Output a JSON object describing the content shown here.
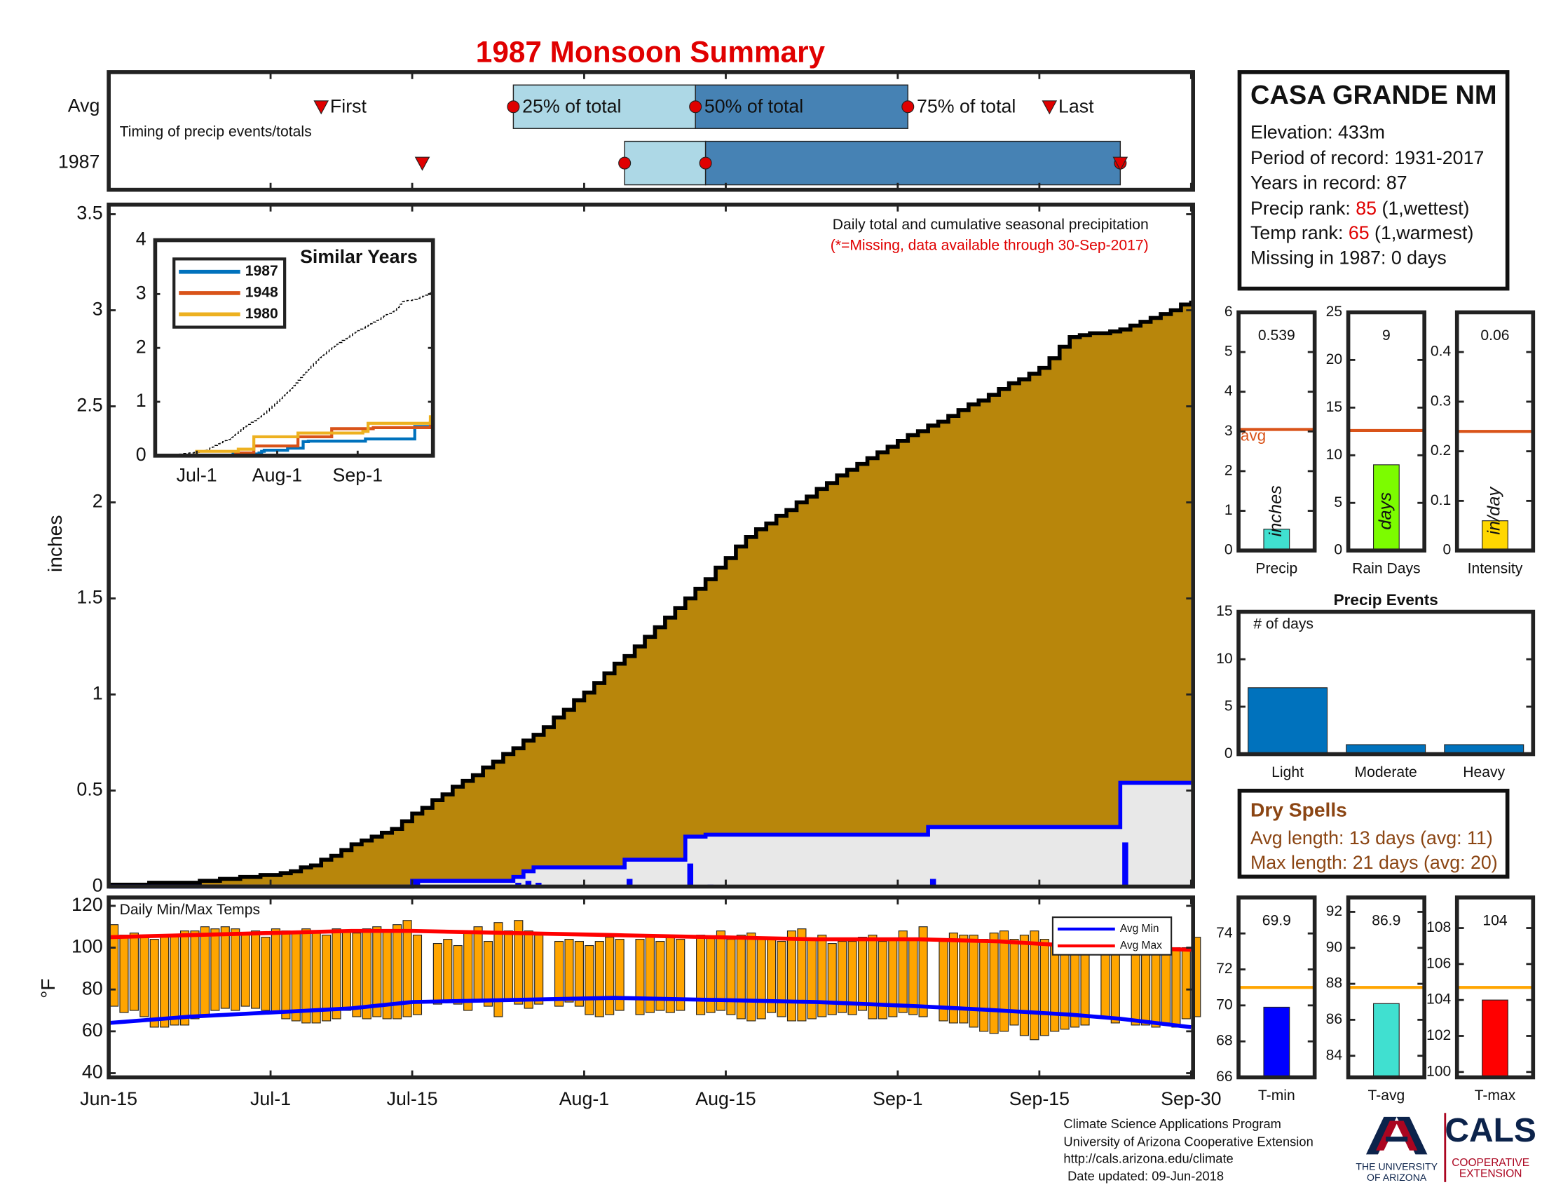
{
  "chart_data": [
    {
      "type": "timing",
      "title": "1987 Monsoon Summary",
      "note": "Timing of precip events/totals",
      "xlim": [
        0,
        107
      ],
      "event_labels": [
        "First",
        "25% of total",
        "50% of total",
        "75% of total",
        "Last"
      ],
      "rows": [
        {
          "name": "Avg",
          "values": [
            21,
            40,
            58,
            79,
            93
          ]
        },
        {
          "name": "1987",
          "values": [
            31,
            51,
            59,
            100,
            100
          ]
        }
      ],
      "colors": [
        "#add8e6",
        "#4682b4"
      ],
      "marker_color": "#e00000"
    },
    {
      "type": "area_step",
      "ylabel": "inches",
      "xlim": [
        0,
        107
      ],
      "ylim": [
        0,
        3.55
      ],
      "yticks": [
        0,
        0.5,
        1,
        1.5,
        2,
        2.5,
        3,
        3.5
      ],
      "annotations": [
        "Daily total and cumulative seasonal precipitation",
        "(*=Missing, data available through 30-Sep-2017)"
      ],
      "x": [
        0,
        1,
        2,
        3,
        4,
        5,
        6,
        7,
        8,
        9,
        10,
        11,
        12,
        13,
        14,
        15,
        16,
        17,
        18,
        19,
        20,
        21,
        22,
        23,
        24,
        25,
        26,
        27,
        28,
        29,
        30,
        31,
        32,
        33,
        34,
        35,
        36,
        37,
        38,
        39,
        40,
        41,
        42,
        43,
        44,
        45,
        46,
        47,
        48,
        49,
        50,
        51,
        52,
        53,
        54,
        55,
        56,
        57,
        58,
        59,
        60,
        61,
        62,
        63,
        64,
        65,
        66,
        67,
        68,
        69,
        70,
        71,
        72,
        73,
        74,
        75,
        76,
        77,
        78,
        79,
        80,
        81,
        82,
        83,
        84,
        85,
        86,
        87,
        88,
        89,
        90,
        91,
        92,
        93,
        94,
        95,
        96,
        97,
        98,
        99,
        100,
        101,
        102,
        103,
        104,
        105,
        106,
        107
      ],
      "average": {
        "color": "#B8860B",
        "values": [
          0.01,
          0.01,
          0.01,
          0.01,
          0.02,
          0.02,
          0.02,
          0.02,
          0.02,
          0.03,
          0.03,
          0.04,
          0.04,
          0.05,
          0.05,
          0.06,
          0.06,
          0.07,
          0.08,
          0.1,
          0.11,
          0.14,
          0.16,
          0.19,
          0.22,
          0.24,
          0.26,
          0.28,
          0.3,
          0.34,
          0.38,
          0.41,
          0.45,
          0.48,
          0.52,
          0.55,
          0.58,
          0.62,
          0.65,
          0.69,
          0.72,
          0.76,
          0.79,
          0.83,
          0.88,
          0.92,
          0.97,
          1.01,
          1.06,
          1.11,
          1.16,
          1.2,
          1.25,
          1.3,
          1.35,
          1.4,
          1.45,
          1.5,
          1.55,
          1.6,
          1.66,
          1.71,
          1.77,
          1.82,
          1.86,
          1.89,
          1.93,
          1.96,
          2.0,
          2.03,
          2.07,
          2.1,
          2.14,
          2.17,
          2.2,
          2.23,
          2.26,
          2.29,
          2.32,
          2.35,
          2.37,
          2.4,
          2.42,
          2.45,
          2.48,
          2.51,
          2.53,
          2.56,
          2.59,
          2.62,
          2.64,
          2.67,
          2.7,
          2.75,
          2.81,
          2.86,
          2.87,
          2.88,
          2.88,
          2.89,
          2.9,
          2.92,
          2.94,
          2.96,
          2.98,
          3.0,
          3.03,
          3.05
        ]
      },
      "cumulative": {
        "color": "#0000ff",
        "fill": "#e8e8e8",
        "values": [
          0,
          0,
          0,
          0,
          0,
          0,
          0,
          0,
          0,
          0,
          0,
          0,
          0,
          0,
          0,
          0,
          0,
          0,
          0,
          0,
          0,
          0,
          0,
          0,
          0,
          0,
          0,
          0,
          0,
          0,
          0.03,
          0.03,
          0.03,
          0.03,
          0.03,
          0.03,
          0.03,
          0.03,
          0.03,
          0.03,
          0.05,
          0.08,
          0.1,
          0.1,
          0.1,
          0.1,
          0.1,
          0.1,
          0.1,
          0.1,
          0.1,
          0.14,
          0.14,
          0.14,
          0.14,
          0.14,
          0.14,
          0.26,
          0.26,
          0.27,
          0.27,
          0.27,
          0.27,
          0.27,
          0.27,
          0.27,
          0.27,
          0.27,
          0.27,
          0.27,
          0.27,
          0.27,
          0.27,
          0.27,
          0.27,
          0.27,
          0.27,
          0.27,
          0.27,
          0.27,
          0.27,
          0.31,
          0.31,
          0.31,
          0.31,
          0.31,
          0.31,
          0.31,
          0.31,
          0.31,
          0.31,
          0.31,
          0.31,
          0.31,
          0.31,
          0.31,
          0.31,
          0.31,
          0.31,
          0.31,
          0.54,
          0.54,
          0.54,
          0.54,
          0.54,
          0.54,
          0.54,
          0.54
        ]
      },
      "daily": {
        "color": "#0000ff",
        "values": [
          0,
          0,
          0,
          0,
          0,
          0,
          0,
          0,
          0,
          0,
          0,
          0,
          0,
          0,
          0,
          0,
          0,
          0,
          0,
          0,
          0,
          0,
          0,
          0,
          0,
          0,
          0,
          0,
          0,
          0,
          0.03,
          0,
          0,
          0,
          0,
          0,
          0,
          0,
          0,
          0,
          0.02,
          0.03,
          0.02,
          0,
          0,
          0,
          0,
          0,
          0,
          0,
          0,
          0.04,
          0,
          0,
          0,
          0,
          0,
          0.12,
          0,
          0.01,
          0,
          0,
          0,
          0,
          0,
          0,
          0,
          0,
          0,
          0,
          0,
          0,
          0,
          0,
          0,
          0,
          0,
          0,
          0,
          0,
          0,
          0.04,
          0,
          0,
          0,
          0,
          0,
          0,
          0,
          0,
          0,
          0,
          0,
          0,
          0,
          0,
          0,
          0,
          0,
          0,
          0.23,
          0,
          0,
          0,
          0,
          0,
          0,
          0
        ]
      }
    },
    {
      "type": "line_step",
      "title": "Similar Years",
      "xlim": [
        0,
        107
      ],
      "ylim": [
        0,
        4
      ],
      "yticks": [
        0,
        1,
        2,
        3,
        4
      ],
      "xticks": [
        {
          "value": 16,
          "label": "Jul-1"
        },
        {
          "value": 47,
          "label": "Aug-1"
        },
        {
          "value": 78,
          "label": "Sep-1"
        }
      ],
      "series": [
        {
          "name": "1987",
          "color": "#0072BD",
          "x": [
            0,
            30,
            40,
            41,
            42,
            51,
            57,
            59,
            81,
            100,
            107
          ],
          "values": [
            0,
            0.03,
            0.05,
            0.08,
            0.1,
            0.14,
            0.26,
            0.27,
            0.31,
            0.54,
            0.54
          ]
        },
        {
          "name": "1948",
          "color": "#D95319",
          "x": [
            0,
            31,
            38,
            55,
            68,
            84,
            106
          ],
          "values": [
            0,
            0.05,
            0.18,
            0.35,
            0.5,
            0.52,
            0.65
          ]
        },
        {
          "name": "1980",
          "color": "#EDB120",
          "x": [
            0,
            16,
            32,
            38,
            55,
            80,
            82,
            106
          ],
          "values": [
            0,
            0.08,
            0.12,
            0.35,
            0.42,
            0.45,
            0.6,
            0.75
          ]
        }
      ]
    },
    {
      "type": "temp_bars",
      "title": "Daily Min/Max Temps",
      "ylabel": "°F",
      "xlim": [
        0,
        107
      ],
      "ylim": [
        38,
        124
      ],
      "yticks": [
        40,
        60,
        80,
        100,
        120
      ],
      "xticks": [
        {
          "value": 0,
          "label": "Jun-15"
        },
        {
          "value": 16,
          "label": "Jul-1"
        },
        {
          "value": 30,
          "label": "Jul-15"
        },
        {
          "value": 47,
          "label": "Aug-1"
        },
        {
          "value": 61,
          "label": "Aug-15"
        },
        {
          "value": 78,
          "label": "Sep-1"
        },
        {
          "value": 92,
          "label": "Sep-15"
        },
        {
          "value": 107,
          "label": "Sep-30"
        }
      ],
      "color": "#FFA500",
      "tmax": [
        111,
        106,
        107,
        105,
        104,
        105,
        106,
        108,
        108,
        110,
        109,
        110,
        109,
        107,
        108,
        105,
        109,
        108,
        107,
        109,
        108,
        106,
        109,
        108,
        107,
        109,
        110,
        108,
        111,
        113,
        106,
        null,
        102,
        104,
        101,
        108,
        110,
        103,
        112,
        108,
        113,
        108,
        106,
        null,
        103,
        104,
        103,
        101,
        103,
        105,
        104,
        null,
        104,
        106,
        103,
        105,
        104,
        null,
        106,
        105,
        108,
        104,
        106,
        107,
        105,
        104,
        103,
        108,
        109,
        104,
        106,
        102,
        103,
        103,
        105,
        106,
        103,
        104,
        108,
        104,
        110,
        null,
        103,
        107,
        106,
        106,
        104,
        107,
        108,
        104,
        106,
        108,
        104,
        102,
        107,
        106,
        103,
        null,
        107,
        106,
        null,
        103,
        102,
        107,
        105,
        100,
        100,
        105
      ],
      "tmin": [
        72,
        69,
        70,
        67,
        62,
        62,
        63,
        63,
        66,
        68,
        70,
        71,
        70,
        72,
        71,
        70,
        69,
        66,
        65,
        64,
        64,
        65,
        66,
        70,
        67,
        66,
        67,
        66,
        66,
        67,
        68,
        null,
        73,
        74,
        73,
        70,
        74,
        72,
        67,
        75,
        73,
        71,
        73,
        null,
        72,
        74,
        72,
        68,
        67,
        68,
        70,
        null,
        68,
        69,
        70,
        69,
        70,
        null,
        68,
        69,
        70,
        68,
        66,
        65,
        66,
        69,
        67,
        65,
        65,
        66,
        67,
        68,
        69,
        68,
        70,
        66,
        66,
        67,
        69,
        68,
        67,
        null,
        65,
        64,
        64,
        62,
        60,
        59,
        60,
        63,
        58,
        56,
        58,
        60,
        61,
        62,
        63,
        null,
        66,
        64,
        null,
        63,
        63,
        62,
        64,
        62,
        66,
        67
      ],
      "series": [
        {
          "name": "Avg Min",
          "color": "#0000ff",
          "x": [
            0,
            8,
            16,
            24,
            30,
            40,
            50,
            60,
            70,
            80,
            88,
            95,
            100,
            107
          ],
          "values": [
            64,
            67,
            69,
            71,
            74,
            75,
            76,
            75,
            74,
            72,
            70,
            68,
            66,
            62
          ]
        },
        {
          "name": "Avg Max",
          "color": "#ff0000",
          "x": [
            0,
            8,
            16,
            24,
            30,
            40,
            50,
            60,
            70,
            80,
            88,
            95,
            100,
            107
          ],
          "values": [
            105,
            106,
            107,
            108,
            108,
            107,
            106,
            105,
            104,
            104,
            103,
            101,
            100,
            99
          ]
        }
      ]
    },
    {
      "type": "single_bar",
      "xlabel": "Precip",
      "ylabel": "inches",
      "value": 0.539,
      "avg": 3.05,
      "avg_label": "avg",
      "color": "#40E0D0",
      "avg_color": "#D95319",
      "ylim": [
        0,
        6
      ],
      "yticks": [
        0,
        1,
        2,
        3,
        4,
        5,
        6
      ]
    },
    {
      "type": "single_bar",
      "xlabel": "Rain Days",
      "ylabel": "days",
      "value": 9,
      "avg": 12.6,
      "color": "#7CFC00",
      "avg_color": "#D95319",
      "ylim": [
        0,
        25
      ],
      "yticks": [
        0,
        5,
        10,
        15,
        20,
        25
      ]
    },
    {
      "type": "single_bar",
      "xlabel": "Intensity",
      "ylabel": "in/day",
      "value": 0.06,
      "avg": 0.24,
      "color": "#FFD700",
      "avg_color": "#D95319",
      "ylim": [
        0,
        0.48
      ],
      "yticks": [
        0,
        0.1,
        0.2,
        0.3,
        0.4
      ]
    },
    {
      "type": "bar",
      "title": "Precip Events",
      "note": "# of days",
      "categories": [
        "Light",
        "Moderate",
        "Heavy"
      ],
      "values": [
        7,
        1,
        1
      ],
      "color": "#0072BD",
      "ylim": [
        0,
        15
      ],
      "yticks": [
        0,
        5,
        10,
        15
      ]
    },
    {
      "type": "single_bar",
      "xlabel": "T-min",
      "value": 69.9,
      "avg": 71,
      "color": "#0000FF",
      "avg_color": "#FFA500",
      "ylim": [
        66,
        76
      ],
      "yticks": [
        66,
        68,
        70,
        72,
        74
      ]
    },
    {
      "type": "single_bar",
      "xlabel": "T-avg",
      "value": 86.9,
      "avg": 87.8,
      "color": "#40E0D0",
      "avg_color": "#FFA500",
      "ylim": [
        82.8,
        92.8
      ],
      "yticks": [
        84,
        86,
        88,
        90,
        92
      ]
    },
    {
      "type": "single_bar",
      "xlabel": "T-max",
      "value": 104,
      "avg": 104.7,
      "color": "#FF0000",
      "avg_color": "#FFA500",
      "ylim": [
        99.7,
        109.7
      ],
      "yticks": [
        100,
        102,
        104,
        106,
        108
      ]
    }
  ],
  "station": {
    "name": "CASA GRANDE NM",
    "lines": [
      "Elevation: 433m",
      "Period of record: 1931-2017",
      "Years in record: 87"
    ],
    "precip_rank": {
      "label": "Precip rank:",
      "value": 85,
      "note": "(1,wettest)"
    },
    "temp_rank": {
      "label": "Temp rank:",
      "value": 65,
      "note": "(1,warmest)"
    },
    "missing": "Missing in 1987: 0 days"
  },
  "dry_spells": {
    "title": "Dry Spells",
    "lines": [
      "Avg length: 13 days (avg: 11)",
      "Max length: 21 days (avg: 20)"
    ]
  },
  "footer": {
    "lines": [
      "Climate Science Applications Program",
      "University of Arizona Cooperative Extension",
      "http://cals.arizona.edu/climate",
      "Date updated: 09-Jun-2018"
    ],
    "logo": {
      "university": [
        "THE UNIVERSITY",
        "OF ARIZONA"
      ],
      "cals": "CALS",
      "extension": [
        "COOPERATIVE",
        "EXTENSION"
      ]
    }
  }
}
